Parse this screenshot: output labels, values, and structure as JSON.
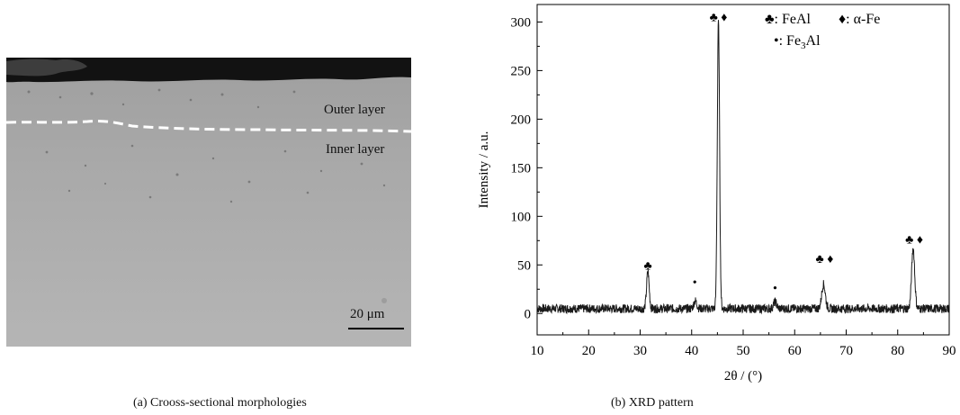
{
  "panel_a": {
    "caption": "(a) Crooss-sectional morphologies",
    "outer_layer_label": "Outer layer",
    "inner_layer_label": "Inner layer",
    "scale_label": "20 μm"
  },
  "panel_b": {
    "caption": "(b) XRD pattern"
  },
  "chart_data": {
    "type": "line",
    "xlabel": "2θ / (°)",
    "ylabel": "Intensity / a.u.",
    "xlim": [
      10,
      90
    ],
    "ylim": [
      -22,
      318
    ],
    "xticks": [
      10,
      20,
      30,
      40,
      50,
      60,
      70,
      80,
      90
    ],
    "yticks": [
      0,
      50,
      100,
      150,
      200,
      250,
      300
    ],
    "legend": {
      "placement": "top-right",
      "entries": [
        {
          "symbol": "♣",
          "label": ": FeAl"
        },
        {
          "symbol": "♦",
          "label": ": α-Fe"
        },
        {
          "symbol": "•",
          "label": ": Fe",
          "subscript": "3",
          "suffix": "Al"
        }
      ]
    },
    "baseline": 5,
    "peaks": [
      {
        "x": 31.5,
        "height": 38,
        "width": 0.25
      },
      {
        "x": 40.7,
        "height": 8,
        "width": 0.3
      },
      {
        "x": 45.2,
        "height": 295,
        "width": 0.22
      },
      {
        "x": 56.2,
        "height": 7,
        "width": 0.3
      },
      {
        "x": 65.6,
        "height": 25,
        "width": 0.35
      },
      {
        "x": 83.0,
        "height": 62,
        "width": 0.3
      }
    ],
    "peak_markers": [
      {
        "x": 31.5,
        "y": 45,
        "symbols": "♣"
      },
      {
        "x": 40.6,
        "y": 28,
        "symbols": "•"
      },
      {
        "x": 45.2,
        "y": 301,
        "symbols": "♣ ♦"
      },
      {
        "x": 56.2,
        "y": 22,
        "symbols": "•"
      },
      {
        "x": 65.8,
        "y": 52,
        "symbols": "♣ ♦"
      },
      {
        "x": 83.2,
        "y": 72,
        "symbols": "♣ ♦"
      }
    ],
    "colors": {
      "line": "#1a1a1a",
      "axis": "#000000"
    }
  }
}
